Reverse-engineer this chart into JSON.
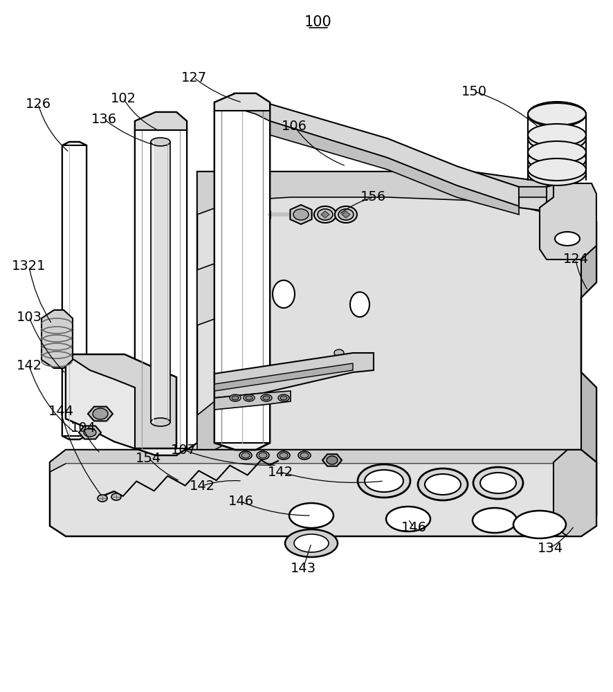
{
  "bg_color": "#ffffff",
  "line_color": "#000000",
  "line_color_dark": "#1a1a1a",
  "gray_light": "#e8e8e8",
  "gray_mid": "#c8c8c8",
  "gray_dark": "#a0a0a0",
  "title": "100",
  "figsize": [
    8.87,
    10.0
  ],
  "dpi": 100
}
